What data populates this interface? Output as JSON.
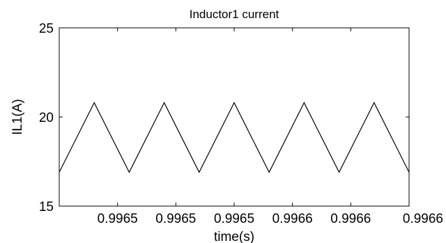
{
  "chart_data": {
    "type": "line",
    "title": "Inductor1 current",
    "xlabel": "time(s)",
    "ylabel": "IL1(A)",
    "xlim": [
      0,
      50
    ],
    "ylim": [
      15,
      25
    ],
    "x_tick_labels": [
      "0.9965",
      "0.9965",
      "0.9965",
      "0.9966",
      "0.9966",
      "0.9966"
    ],
    "y_ticks": [
      15,
      20,
      25
    ],
    "grid": false,
    "series": [
      {
        "color": "#000000",
        "x": [
          0,
          5,
          10,
          15,
          20,
          25,
          30,
          35,
          40,
          45,
          50
        ],
        "y": [
          16.9,
          20.8,
          16.9,
          20.8,
          16.9,
          20.8,
          16.9,
          20.8,
          16.9,
          20.8,
          16.9
        ]
      }
    ]
  }
}
